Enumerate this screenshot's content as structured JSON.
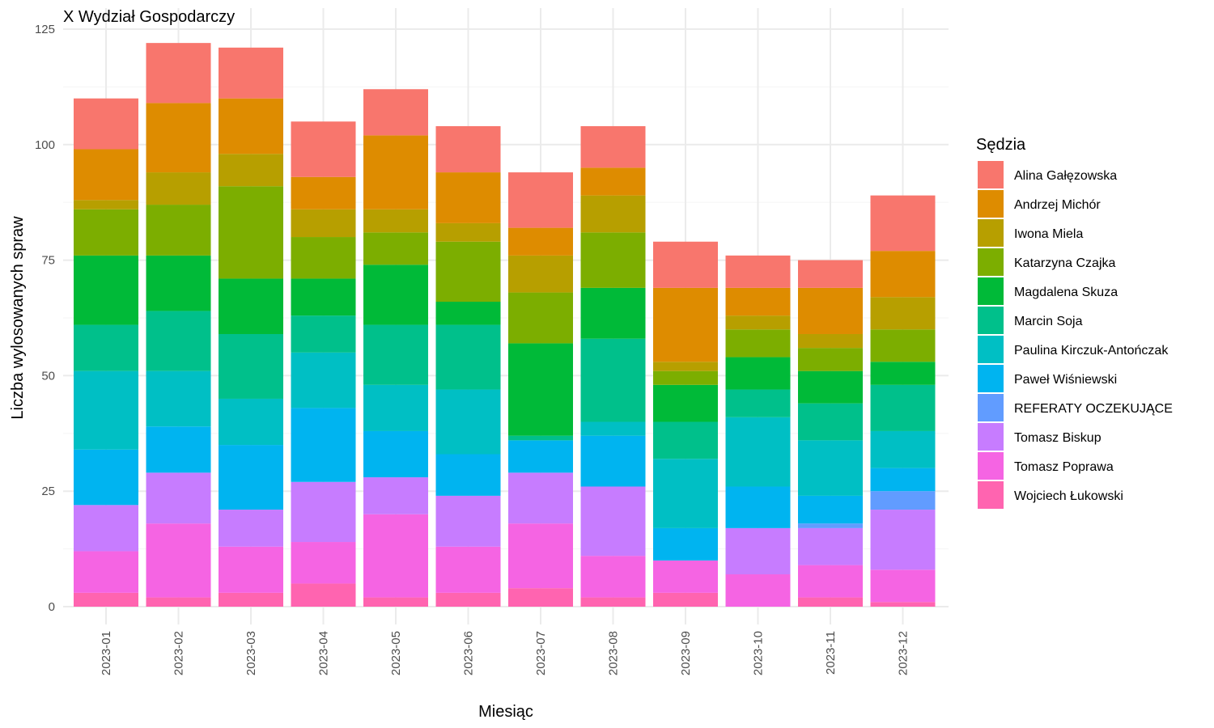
{
  "chart_data": {
    "type": "bar",
    "stacked": true,
    "title": "X Wydział Gospodarczy",
    "xlabel": "Miesiąc",
    "ylabel": "Liczba wylosowanych spraw",
    "ylim": [
      0,
      125
    ],
    "yticks": [
      0,
      25,
      50,
      75,
      100,
      125
    ],
    "grid": true,
    "legend_title": "Sędzia",
    "legend_position": "right",
    "categories": [
      "2023-01",
      "2023-02",
      "2023-03",
      "2023-04",
      "2023-05",
      "2023-06",
      "2023-07",
      "2023-08",
      "2023-09",
      "2023-10",
      "2023-11",
      "2023-12"
    ],
    "series": [
      {
        "name": "Alina Gałęzowska",
        "color": "#F8766D",
        "values": [
          11,
          13,
          11,
          12,
          10,
          10,
          12,
          9,
          10,
          7,
          6,
          12
        ]
      },
      {
        "name": "Andrzej Michór",
        "color": "#DE8C00",
        "values": [
          11,
          15,
          12,
          7,
          16,
          11,
          6,
          6,
          16,
          6,
          10,
          10
        ]
      },
      {
        "name": "Iwona Miela",
        "color": "#B79F00",
        "values": [
          2,
          7,
          7,
          6,
          5,
          4,
          8,
          8,
          2,
          3,
          3,
          7
        ]
      },
      {
        "name": "Katarzyna Czajka",
        "color": "#7CAE00",
        "values": [
          10,
          11,
          20,
          9,
          7,
          13,
          11,
          12,
          3,
          6,
          5,
          7
        ]
      },
      {
        "name": "Magdalena Skuza",
        "color": "#00BA38",
        "values": [
          15,
          12,
          12,
          8,
          13,
          5,
          20,
          11,
          8,
          7,
          7,
          5
        ]
      },
      {
        "name": "Marcin Soja",
        "color": "#00C08B",
        "values": [
          10,
          13,
          14,
          8,
          13,
          14,
          1,
          18,
          8,
          6,
          8,
          10
        ]
      },
      {
        "name": "Paulina Kirczuk-Antończak",
        "color": "#00BFC4",
        "values": [
          17,
          12,
          10,
          12,
          10,
          14,
          0,
          3,
          15,
          15,
          12,
          8
        ]
      },
      {
        "name": "Paweł Wiśniewski",
        "color": "#00B4F0",
        "values": [
          12,
          10,
          14,
          16,
          10,
          9,
          7,
          11,
          7,
          9,
          6,
          5
        ]
      },
      {
        "name": "REFERATY OCZEKUJĄCE",
        "color": "#619CFF",
        "values": [
          0,
          0,
          0,
          0,
          0,
          0,
          0,
          0,
          0,
          0,
          1,
          4
        ]
      },
      {
        "name": "Tomasz Biskup",
        "color": "#C77CFF",
        "values": [
          10,
          11,
          8,
          13,
          8,
          11,
          11,
          15,
          0,
          10,
          8,
          13
        ]
      },
      {
        "name": "Tomasz Poprawa",
        "color": "#F564E3",
        "values": [
          9,
          16,
          10,
          9,
          18,
          10,
          14,
          9,
          7,
          7,
          7,
          7
        ]
      },
      {
        "name": "Wojciech Łukowski",
        "color": "#FF64B0",
        "values": [
          3,
          2,
          3,
          5,
          2,
          3,
          4,
          2,
          3,
          0,
          2,
          1
        ]
      }
    ]
  }
}
